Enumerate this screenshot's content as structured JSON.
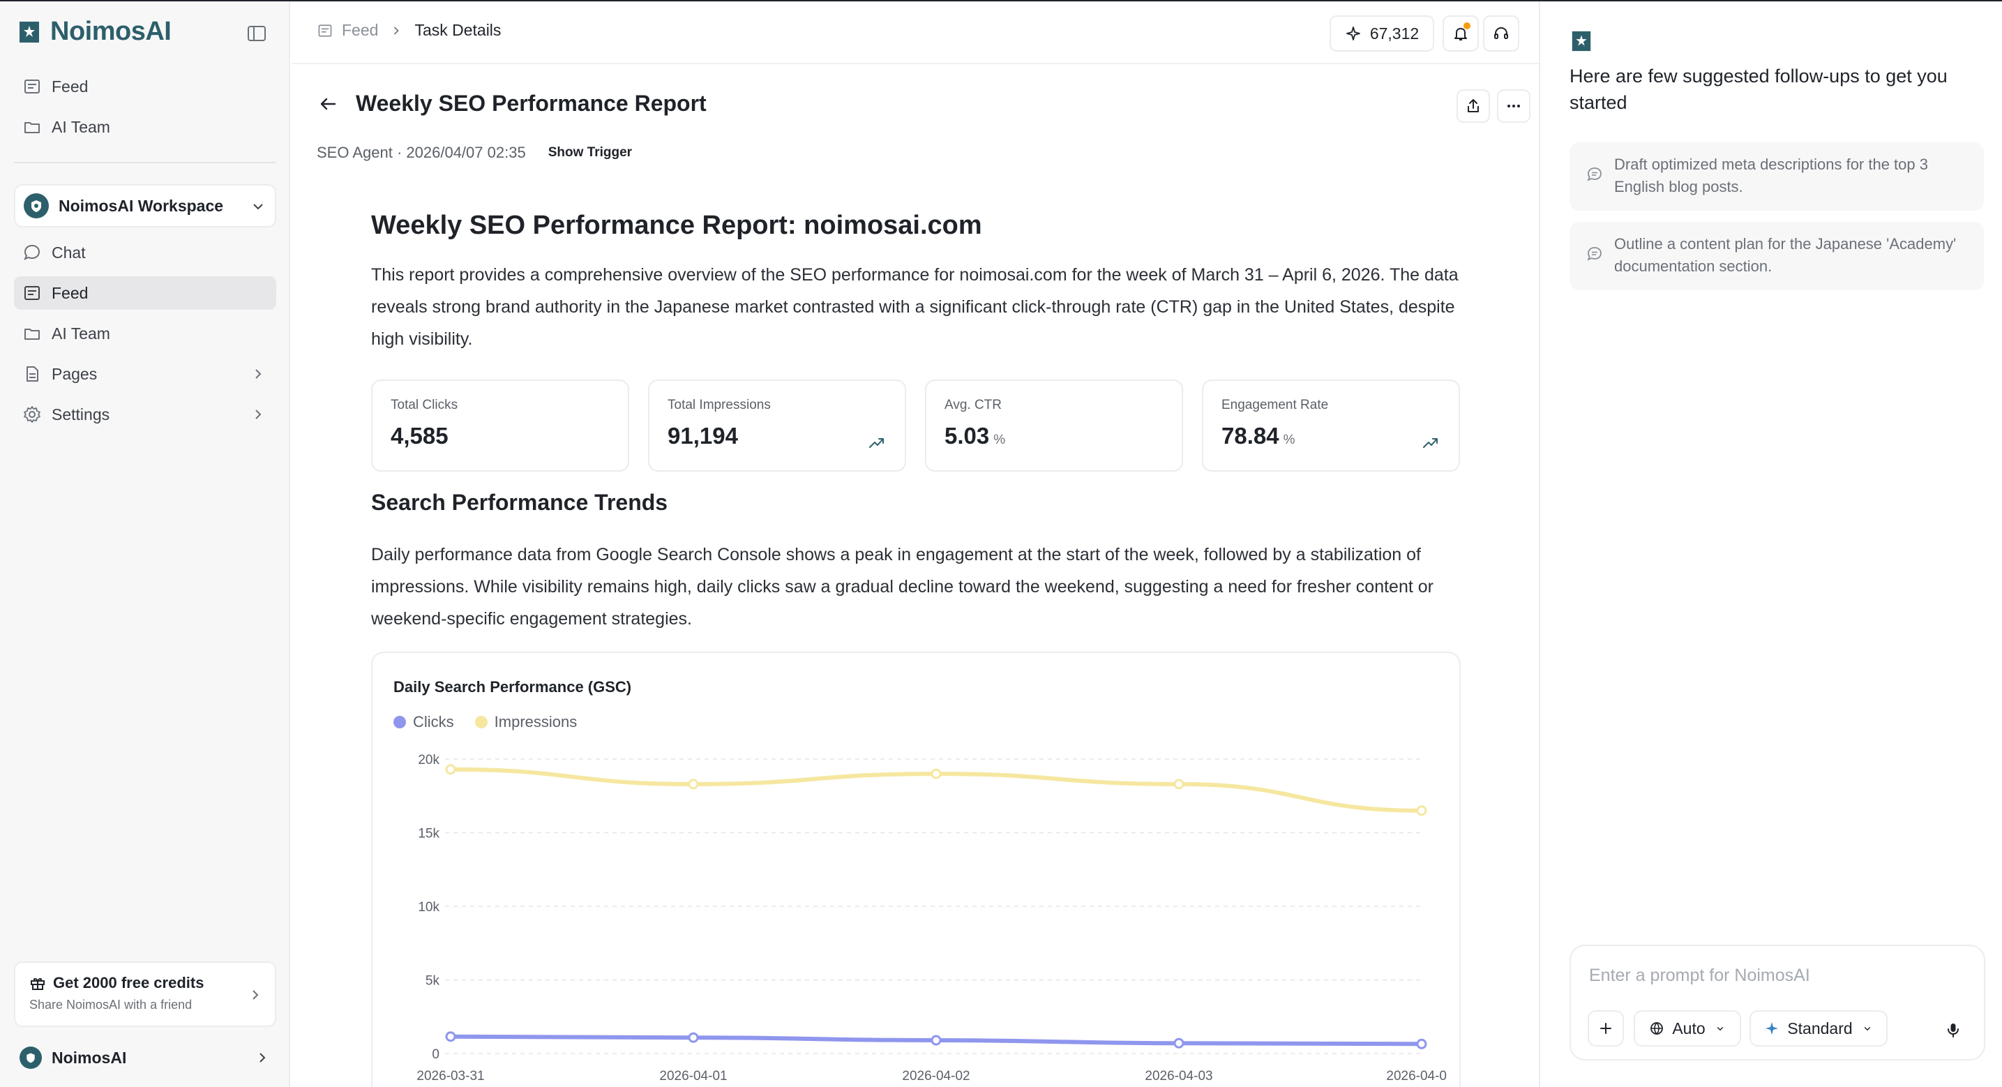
{
  "app": {
    "name": "NoimosAI"
  },
  "sidebar": {
    "top_items": [
      {
        "label": "Feed"
      },
      {
        "label": "AI Team"
      }
    ],
    "workspace": {
      "name": "NoimosAI Workspace"
    },
    "items": [
      {
        "label": "Chat"
      },
      {
        "label": "Feed"
      },
      {
        "label": "AI Team"
      },
      {
        "label": "Pages"
      },
      {
        "label": "Settings"
      }
    ],
    "credits": {
      "title": "Get 2000 free credits",
      "subtitle": "Share NoimosAI with a friend"
    },
    "user": {
      "name": "NoimosAI"
    }
  },
  "topbar": {
    "breadcrumb": {
      "parent": "Feed",
      "current": "Task Details"
    },
    "credits": "67,312"
  },
  "task": {
    "title": "Weekly SEO Performance Report",
    "meta": "SEO Agent · 2026/04/07 02:35",
    "trigger_label": "Show Trigger"
  },
  "report": {
    "heading": "Weekly SEO Performance Report: noimosai.com",
    "intro": "This report provides a comprehensive overview of the SEO performance for noimosai.com for the week of March 31 – April 6, 2026. The data reveals strong brand authority in the Japanese market contrasted with a significant click-through rate (CTR) gap in the United States, despite high visibility.",
    "stats": [
      {
        "label": "Total Clicks",
        "value": "4,585",
        "unit": "",
        "trend": ""
      },
      {
        "label": "Total Impressions",
        "value": "91,194",
        "unit": "",
        "trend": "trend-up-icon"
      },
      {
        "label": "Avg. CTR",
        "value": "5.03",
        "unit": "%",
        "trend": ""
      },
      {
        "label": "Engagement Rate",
        "value": "78.84",
        "unit": "%",
        "trend": "trend-up-icon"
      }
    ],
    "section_title": "Search Performance Trends",
    "section_text": "Daily performance data from Google Search Console shows a peak in engagement at the start of the week, followed by a stabilization of impressions. While visibility remains high, daily clicks saw a gradual decline toward the weekend, suggesting a need for fresher content or weekend-specific engagement strategies."
  },
  "chart_data": {
    "type": "line",
    "title": "Daily Search Performance (GSC)",
    "x": [
      "2026-03-31",
      "2026-04-01",
      "2026-04-02",
      "2026-04-03",
      "2026-04-0"
    ],
    "series": [
      {
        "name": "Clicks",
        "color": "#8f96ee",
        "values": [
          1150,
          1080,
          900,
          700,
          650
        ]
      },
      {
        "name": "Impressions",
        "color": "#f6e7a0",
        "values": [
          19300,
          18300,
          19000,
          18300,
          16500
        ]
      }
    ],
    "yticks": [
      "0",
      "5k",
      "10k",
      "15k",
      "20k"
    ],
    "ylim": [
      0,
      20000
    ],
    "grid": true,
    "legend": "top-left"
  },
  "right_panel": {
    "intro": "Here are few suggested follow-ups to get you started",
    "suggestions": [
      {
        "text": "Draft optimized meta descriptions for the top 3 English blog posts."
      },
      {
        "text": "Outline a content plan for the Japanese 'Academy' documentation section."
      }
    ],
    "composer": {
      "placeholder": "Enter a prompt for NoimosAI",
      "mode": "Auto",
      "quality": "Standard"
    }
  },
  "colors": {
    "brand": "#2d5f6b",
    "accent": "#f59e0b"
  }
}
